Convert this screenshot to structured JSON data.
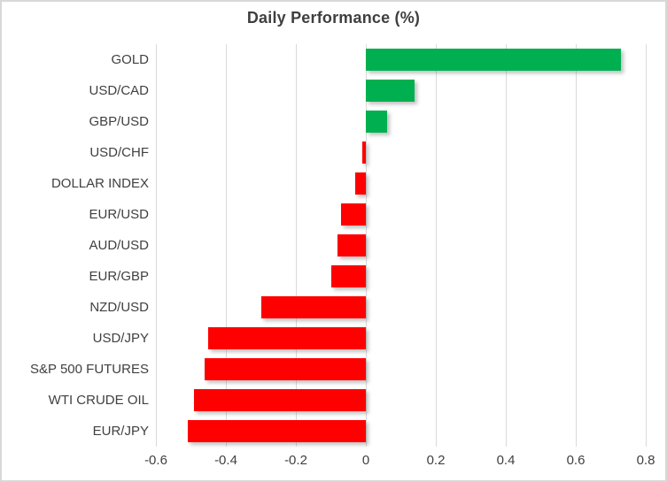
{
  "window": {
    "background_color": "#FFFFFF",
    "border_color": "#D8D8D8"
  },
  "chart_data": {
    "type": "bar",
    "orientation": "horizontal",
    "title": "Daily Performance (%)",
    "categories": [
      "GOLD",
      "USD/CAD",
      "GBP/USD",
      "USD/CHF",
      "DOLLAR INDEX",
      "EUR/USD",
      "AUD/USD",
      "EUR/GBP",
      "NZD/USD",
      "USD/JPY",
      "S&P 500 FUTURES",
      "WTI CRUDE OIL",
      "EUR/JPY"
    ],
    "values": [
      0.73,
      0.14,
      0.06,
      -0.01,
      -0.03,
      -0.07,
      -0.08,
      -0.1,
      -0.3,
      -0.45,
      -0.46,
      -0.49,
      -0.51
    ],
    "xlabel": "",
    "ylabel": "",
    "xlim": [
      -0.6,
      0.8
    ],
    "x_tick_values": [
      -0.6,
      -0.4,
      -0.2,
      0,
      0.2,
      0.4,
      0.6,
      0.8
    ],
    "x_tick_labels": [
      "-0.6",
      "-0.4",
      "-0.2",
      "0",
      "0.2",
      "0.4",
      "0.6",
      "0.8"
    ],
    "grid": "vertical",
    "legend": "none",
    "colors": {
      "positive": "#00B050",
      "negative": "#FF0000",
      "gridline": "#D9D9D9",
      "label_text": "#404040",
      "title_text": "#3F3F3F"
    }
  }
}
